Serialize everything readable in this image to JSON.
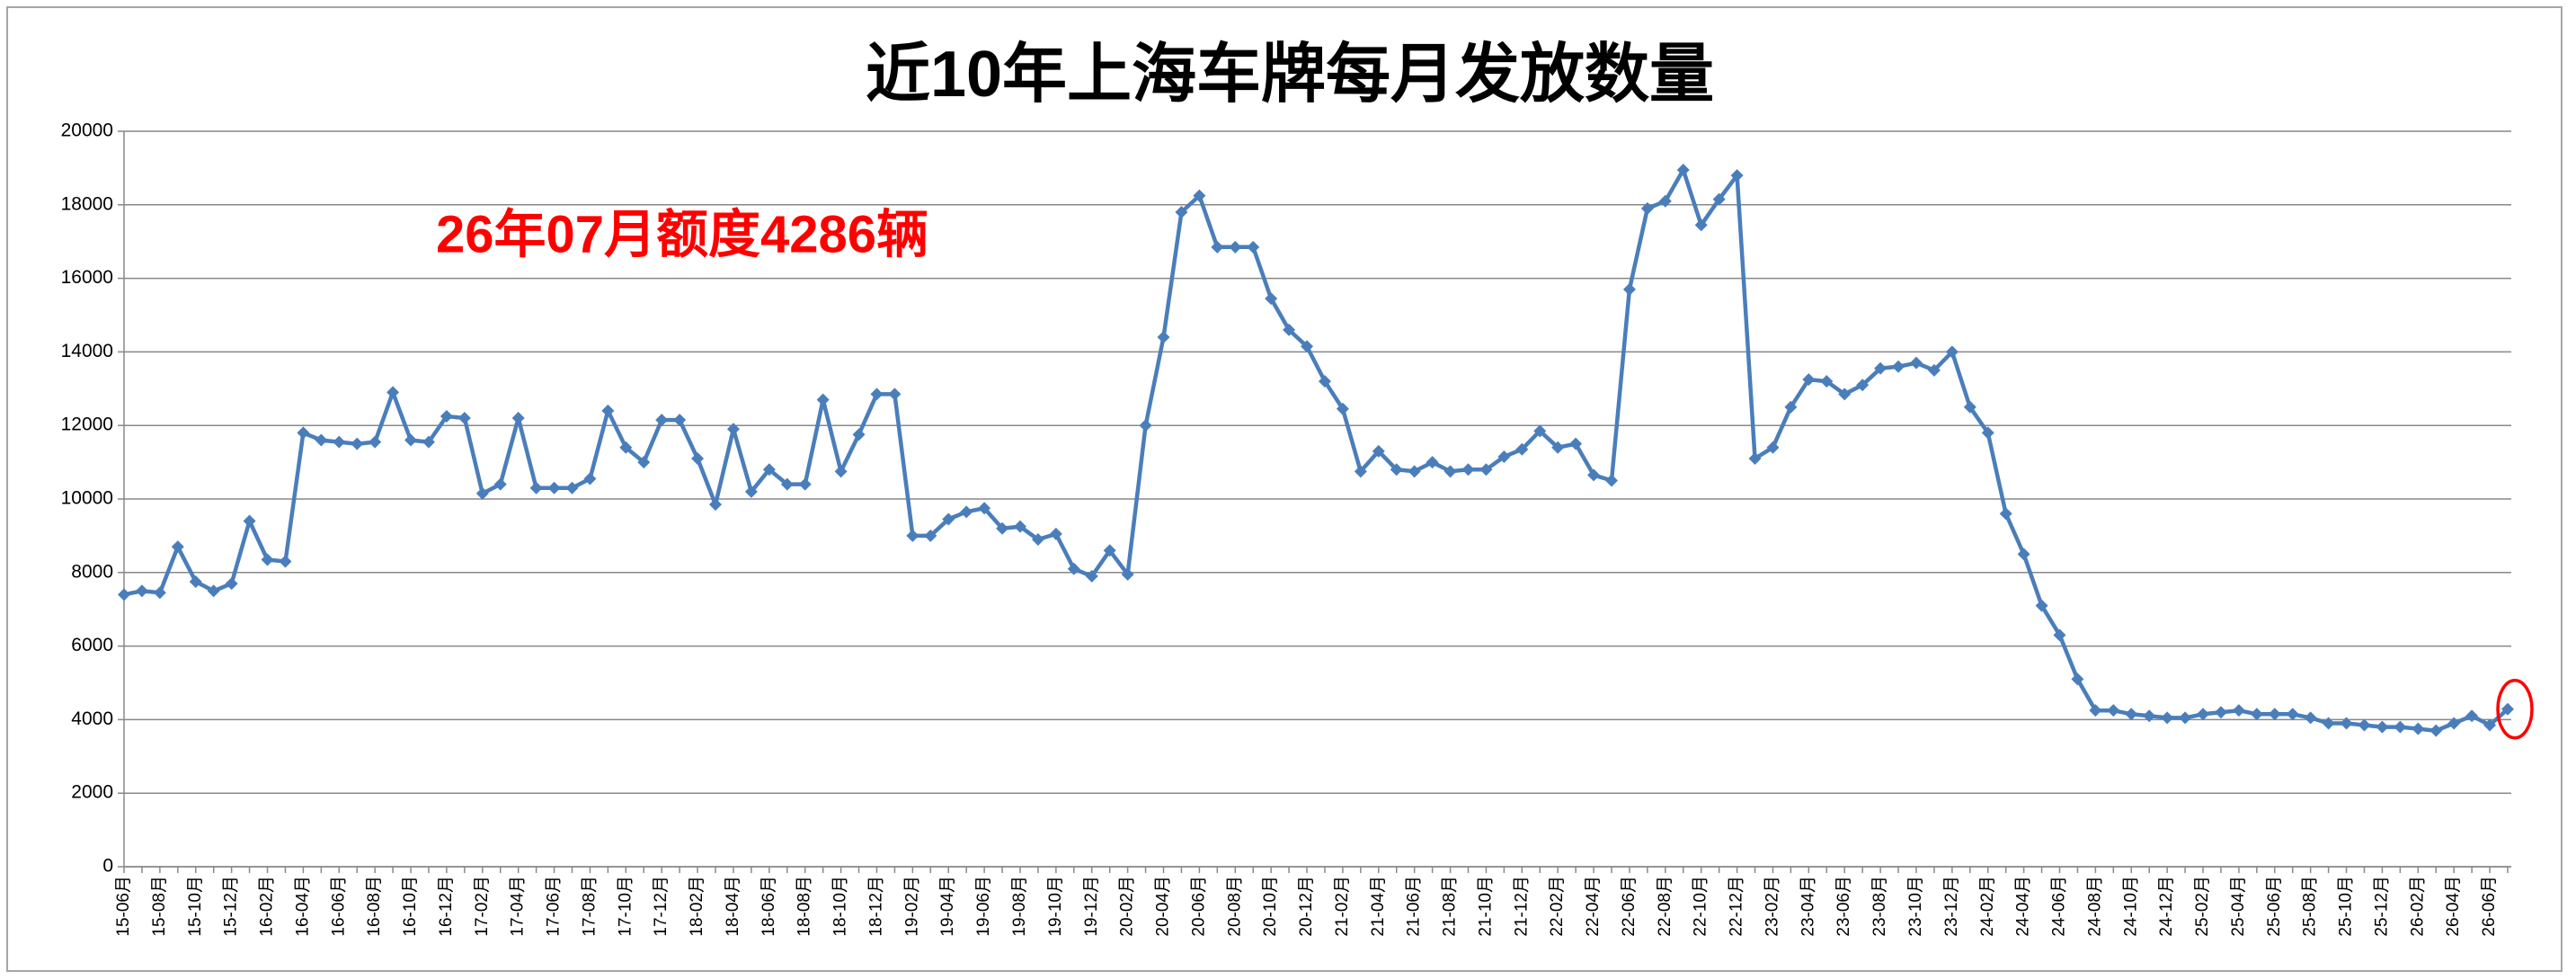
{
  "chart_data": {
    "type": "line",
    "title": "近10年上海车牌每月发放数量",
    "annotation": "26年07月额度4286辆",
    "color": "#4a7ebb",
    "grid": true,
    "ylim": [
      0,
      20000
    ],
    "yticks": [
      0,
      2000,
      4000,
      6000,
      8000,
      10000,
      12000,
      14000,
      16000,
      18000,
      20000
    ],
    "categories": [
      "15-06月",
      null,
      "15-08月",
      null,
      "15-10月",
      null,
      "15-12月",
      null,
      "16-02月",
      null,
      "16-04月",
      null,
      "16-06月",
      null,
      "16-08月",
      null,
      "16-10月",
      null,
      "16-12月",
      null,
      "17-02月",
      null,
      "17-04月",
      null,
      "17-06月",
      null,
      "17-08月",
      null,
      "17-10月",
      null,
      "17-12月",
      null,
      "18-02月",
      null,
      "18-04月",
      null,
      "18-06月",
      null,
      "18-08月",
      null,
      "18-10月",
      null,
      "18-12月",
      null,
      "19-02月",
      null,
      "19-04月",
      null,
      "19-06月",
      null,
      "19-08月",
      null,
      "19-10月",
      null,
      "19-12月",
      null,
      "20-02月",
      null,
      "20-04月",
      null,
      "20-06月",
      null,
      "20-08月",
      null,
      "20-10月",
      null,
      "20-12月",
      null,
      "21-02月",
      null,
      "21-04月",
      null,
      "21-06月",
      null,
      "21-08月",
      null,
      "21-10月",
      null,
      "21-12月",
      null,
      "22-02月",
      null,
      "22-04月",
      null,
      "22-06月",
      null,
      "22-08月",
      null,
      "22-10月",
      null,
      "22-12月",
      null,
      "23-02月",
      null,
      "23-04月",
      null,
      "23-06月",
      null,
      "23-08月",
      null,
      "23-10月",
      null,
      "23-12月",
      null,
      "24-02月",
      null,
      "24-04月",
      null,
      "24-06月",
      null,
      "24-08月",
      null,
      "24-10月",
      null,
      "24-12月",
      null,
      "25-02月",
      null,
      "25-04月",
      null,
      "25-06月",
      null,
      "25-08月",
      null,
      "25-10月",
      null,
      "25-12月",
      null,
      "26-02月",
      null,
      "26-04月",
      null,
      "26-06月",
      null
    ],
    "values": [
      7400,
      7500,
      7450,
      8700,
      7750,
      7500,
      7700,
      9400,
      8350,
      8300,
      11800,
      11600,
      11550,
      11500,
      11550,
      12900,
      11600,
      11550,
      12250,
      12200,
      10150,
      10400,
      12200,
      10300,
      10300,
      10300,
      10550,
      12400,
      11400,
      11000,
      12150,
      12150,
      11100,
      9850,
      11900,
      10200,
      10800,
      10400,
      10400,
      12700,
      10750,
      11750,
      12850,
      12850,
      9000,
      9000,
      9450,
      9650,
      9750,
      9200,
      9250,
      8900,
      9050,
      8100,
      7900,
      8600,
      7950,
      12000,
      14400,
      17800,
      18250,
      16850,
      16850,
      16850,
      15450,
      14600,
      14150,
      13200,
      12450,
      10750,
      11300,
      10800,
      10750,
      11000,
      10750,
      10800,
      10800,
      11150,
      11350,
      11850,
      11400,
      11500,
      10650,
      10500,
      15700,
      17900,
      18100,
      18950,
      17450,
      18150,
      18800,
      11100,
      11400,
      12500,
      13250,
      13200,
      12850,
      13100,
      13550,
      13600,
      13700,
      13500,
      14000,
      12500,
      11800,
      9600,
      8500,
      7100,
      6300,
      5100,
      4250,
      4250,
      4150,
      4100,
      4050,
      4050,
      4150,
      4200,
      4250,
      4150,
      4150,
      4150,
      4050,
      3900,
      3900,
      3850,
      3800,
      3800,
      3750,
      3700,
      3900,
      4100,
      3850,
      4286
    ]
  }
}
